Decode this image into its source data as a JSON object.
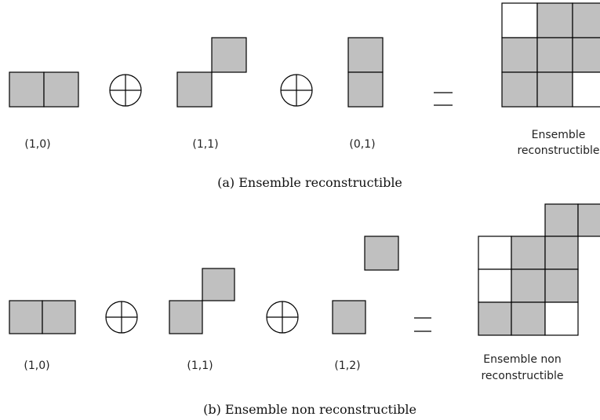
{
  "panels": [
    {
      "labels": [
        "(1,0)",
        "(1,1)",
        "(0,1)"
      ],
      "result": [
        "Ensemble",
        "reconstructible"
      ],
      "caption": "(a) Ensemble reconstructible"
    },
    {
      "labels": [
        "(1,0)",
        "(1,1)",
        "(1,2)"
      ],
      "result": [
        "Ensemble non",
        "reconstructible"
      ],
      "caption": "(b) Ensemble non reconstructible"
    }
  ]
}
